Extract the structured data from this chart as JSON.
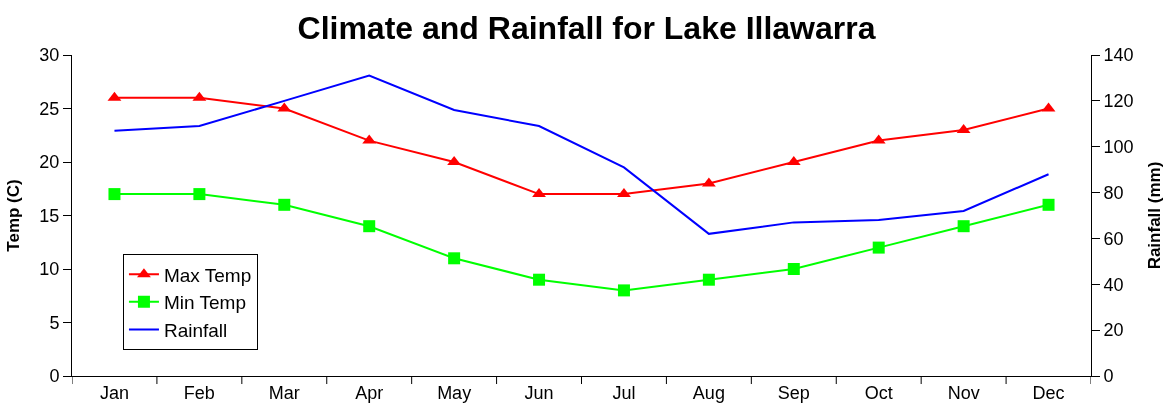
{
  "chart_data": {
    "type": "line",
    "title": "Climate and Rainfall for Lake Illawarra",
    "ylabel": "Temp (C)",
    "y2label": "Rainfall (mm)",
    "categories": [
      "Jan",
      "Feb",
      "Mar",
      "Apr",
      "May",
      "Jun",
      "Jul",
      "Aug",
      "Sep",
      "Oct",
      "Nov",
      "Dec"
    ],
    "series": [
      {
        "name": "Max Temp",
        "color": "#ff0000",
        "marker": "triangle",
        "values": [
          26,
          26,
          25,
          22,
          20,
          17,
          17,
          18,
          20,
          22,
          23,
          25
        ]
      },
      {
        "name": "Min Temp",
        "color": "#00ff00",
        "marker": "square",
        "values": [
          17,
          17,
          16,
          14,
          11,
          9,
          8,
          9,
          10,
          12,
          14,
          16
        ]
      },
      {
        "name": "Rainfall",
        "color": "#0000ff",
        "marker": "none",
        "axis": "y2",
        "values": [
          107,
          109,
          120,
          131,
          116,
          109,
          91,
          62,
          67,
          68,
          72,
          88
        ]
      }
    ],
    "ylim": [
      0,
      30
    ],
    "yticks": [
      0,
      5,
      10,
      15,
      20,
      25,
      30
    ],
    "y2lim": [
      0,
      140
    ],
    "y2ticks": [
      0,
      20,
      40,
      60,
      80,
      100,
      120,
      140
    ],
    "legend": "left"
  }
}
